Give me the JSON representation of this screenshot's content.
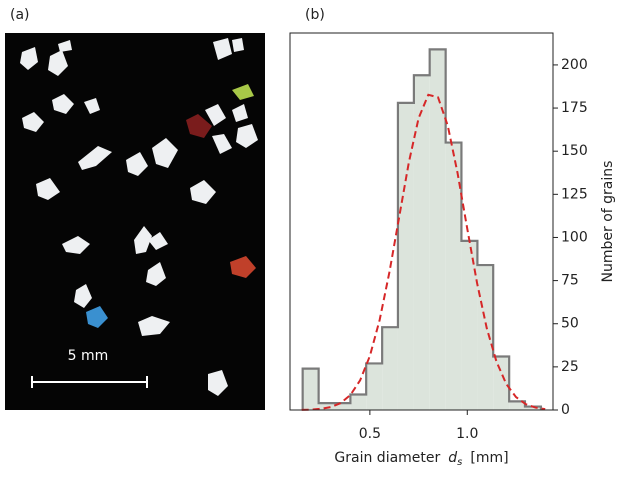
{
  "panel_a": {
    "label": "(a)",
    "scale_bar": "5 mm"
  },
  "chart_data": {
    "type": "histogram",
    "label": "(b)",
    "xlabel": {
      "text": "Grain diameter",
      "symbol": "d",
      "subscript": "s",
      "unit": "[mm]"
    },
    "ylabel": "Number of grains",
    "bins": [
      0.155,
      0.237,
      0.318,
      0.4,
      0.481,
      0.563,
      0.644,
      0.726,
      0.807,
      0.889,
      0.97,
      1.052,
      1.133,
      1.215,
      1.296,
      1.378
    ],
    "values": [
      24,
      4,
      4,
      9,
      27,
      48,
      178,
      194,
      209,
      155,
      98,
      84,
      31,
      5,
      2
    ],
    "color": "#dce4dc",
    "edge_color": "#7a7a7a",
    "fit": {
      "x": [
        0.15,
        0.2,
        0.25,
        0.3,
        0.35,
        0.4,
        0.45,
        0.5,
        0.55,
        0.6,
        0.65,
        0.7,
        0.75,
        0.8,
        0.85,
        0.9,
        0.95,
        1.0,
        1.05,
        1.1,
        1.15,
        1.2,
        1.25,
        1.3,
        1.35,
        1.4
      ],
      "values": [
        0.1,
        0.2,
        0.7,
        1.7,
        4.0,
        8.7,
        17.2,
        31.3,
        52.1,
        79.7,
        111.6,
        143.5,
        169.1,
        182.7,
        181.2,
        164.7,
        137.4,
        105.0,
        73.7,
        47.4,
        28.0,
        15.1,
        7.5,
        3.4,
        1.4,
        0.5
      ],
      "color": "#d62728"
    },
    "xlim": [
      0.09,
      1.44
    ],
    "ylim": [
      0,
      218.5
    ],
    "xticks": [
      0.5,
      {
        "value": 1,
        "label": "1.0"
      }
    ],
    "yticks": [
      0,
      25,
      50,
      75,
      100,
      125,
      150,
      175,
      200
    ]
  }
}
